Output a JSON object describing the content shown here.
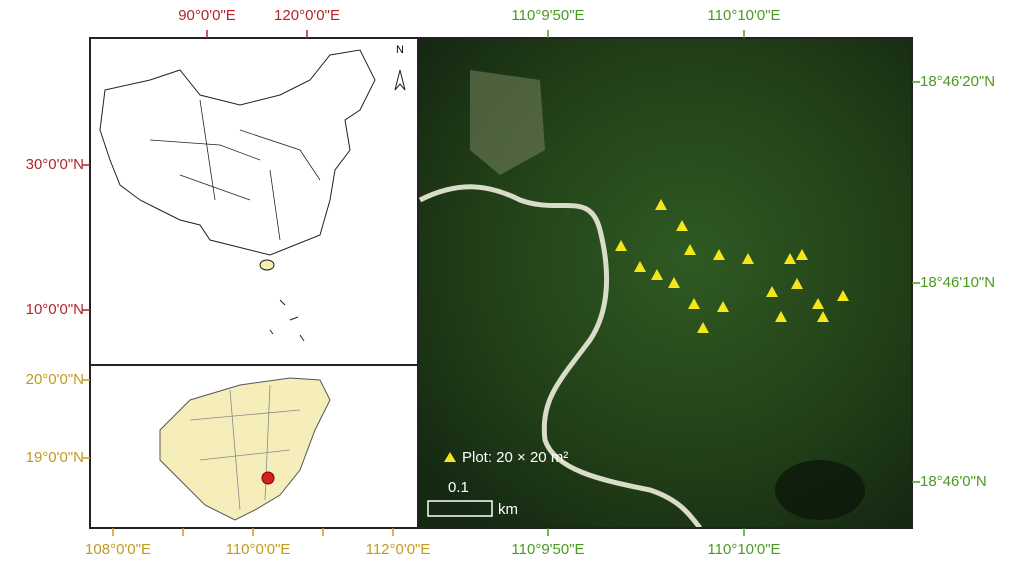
{
  "china_map": {
    "x_ticks": [
      "90°0'0\"E",
      "120°0'0\"E"
    ],
    "y_ticks": [
      "30°0'0\"N",
      "10°0'0\"N"
    ],
    "north_label": "N"
  },
  "hainan_map": {
    "x_ticks": [
      "108°0'0\"E",
      "110°0'0\"E",
      "112°0'0\"E"
    ],
    "y_ticks": [
      "20°0'0\"N",
      "19°0'0\"N"
    ]
  },
  "satellite": {
    "x_ticks_top": [
      "110°9'50\"E",
      "110°10'0\"E"
    ],
    "x_ticks_bottom": [
      "110°9'50\"E",
      "110°10'0\"E"
    ],
    "y_ticks": [
      "18°46'20\"N",
      "18°46'10\"N",
      "18°46'0\"N"
    ],
    "legend": "Plot: 20 × 20 m²",
    "scale_value": "0.1",
    "scale_unit": "km"
  }
}
